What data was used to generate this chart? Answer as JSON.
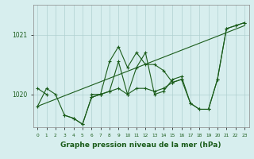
{
  "background_color": "#d7eeee",
  "grid_color": "#b0d0d0",
  "line_color": "#1a5c1a",
  "xlabel": "Graphe pression niveau de la mer (hPa)",
  "xlabel_fontsize": 6.5,
  "xlabel_fontweight": "bold",
  "ylabel_ticks": [
    1020,
    1021
  ],
  "xlim": [
    -0.5,
    23.5
  ],
  "ylim": [
    1019.45,
    1021.5
  ],
  "xtick_labels": [
    "0",
    "1",
    "2",
    "3",
    "4",
    "5",
    "6",
    "7",
    "8",
    "9",
    "10",
    "11",
    "12",
    "13",
    "14",
    "15",
    "16",
    "17",
    "18",
    "19",
    "20",
    "21",
    "22",
    "23"
  ],
  "trend_line": [
    [
      0,
      23
    ],
    [
      1019.8,
      1021.15
    ]
  ],
  "series1": [
    1019.8,
    1020.1,
    1020.0,
    1019.65,
    1019.6,
    1019.5,
    1019.95,
    1020.0,
    1020.05,
    1020.55,
    1020.0,
    1020.45,
    1020.7,
    1020.0,
    1020.05,
    1020.25,
    1020.3,
    1019.85,
    1019.75,
    1019.75,
    1020.25,
    1021.1,
    1021.15,
    1021.2
  ],
  "series2": [
    1020.1,
    1020.0,
    null,
    null,
    null,
    null,
    1020.0,
    1020.0,
    1020.05,
    1020.1,
    1020.0,
    1020.1,
    1020.1,
    1020.05,
    1020.1,
    1020.2,
    1020.25,
    1019.85,
    1019.75,
    1019.75,
    1020.25,
    1021.1,
    1021.15,
    1021.2
  ],
  "series3": [
    null,
    null,
    null,
    1019.65,
    1019.6,
    1019.5,
    1019.95,
    1020.0,
    1020.55,
    1020.8,
    1020.45,
    1020.7,
    1020.5,
    1020.5,
    1020.4,
    1020.2,
    1020.25,
    null,
    null,
    null,
    null,
    null,
    null,
    null
  ]
}
